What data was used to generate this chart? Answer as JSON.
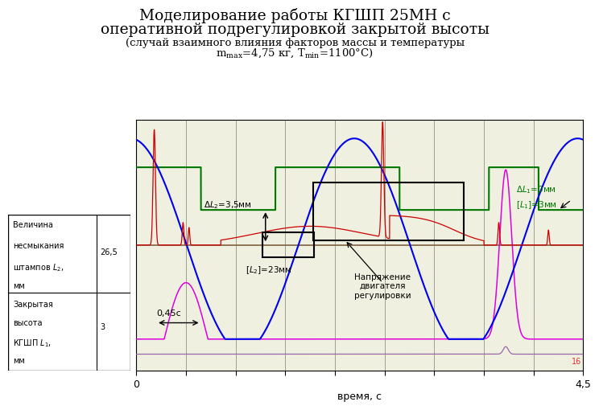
{
  "title_line1": "Моделирование работы КГШП 25МН с",
  "title_line2": "оперативной подрегулировкой закрытой высоты",
  "subtitle_line1": "(случай взаимного влияния факторов массы и температуры",
  "subtitle_line2_pre": "m",
  "subtitle_line2_mid": "=4,75 кг, T",
  "subtitle_line2_end": "=1100°C)",
  "xlabel": "время, с",
  "xmin": 0,
  "xmax": 4.5,
  "plot_bg": "#f0f0e0",
  "grid_color": "#a0a090",
  "blue_color": "#0000ee",
  "red_color": "#cc0000",
  "green_color": "#007700",
  "magenta_color": "#dd00dd",
  "purple_color": "#9966aa",
  "brown_line": "#806040"
}
